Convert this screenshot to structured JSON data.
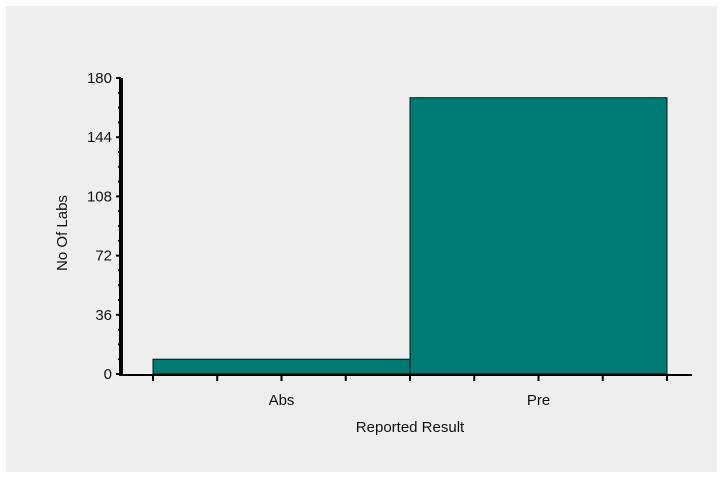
{
  "chart_data": {
    "type": "bar",
    "categories": [
      "Abs",
      "Pre"
    ],
    "values": [
      9,
      168
    ],
    "xlabel": "Reported Result",
    "ylabel": "No Of Labs",
    "ylim": [
      0,
      180
    ],
    "yticks": [
      "0",
      "36",
      "72",
      "108",
      "144",
      "180"
    ],
    "grid": false,
    "bar_color": "#007b74",
    "background_color": "#eeeeee"
  }
}
